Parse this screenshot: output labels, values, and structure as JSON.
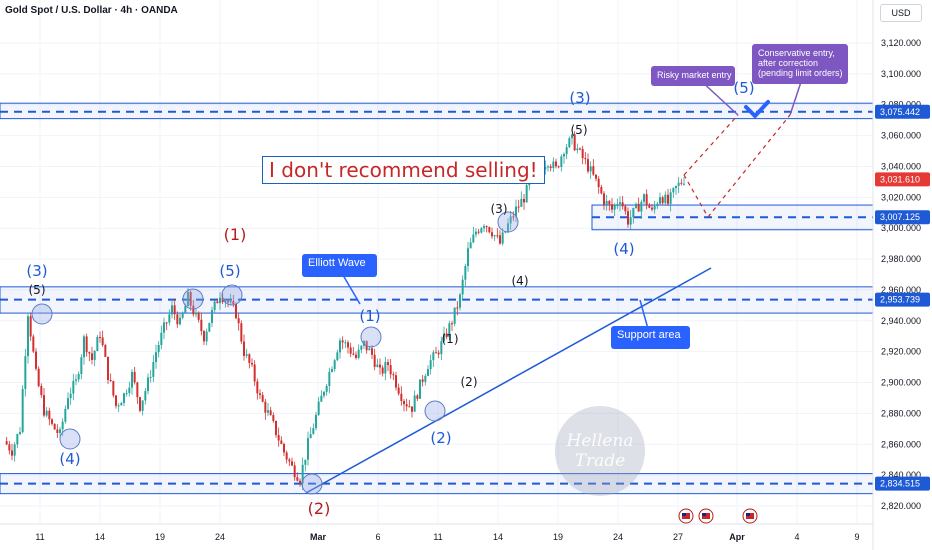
{
  "header": {
    "title": "Gold Spot / U.S. Dollar · 4h · OANDA",
    "currency": "USD"
  },
  "chart_data": {
    "type": "candlestick",
    "y_axis": {
      "range": [
        2815,
        3132
      ],
      "ticks": [
        "3,120.000",
        "3,100.000",
        "3,080.000",
        "3,060.000",
        "3,040.000",
        "3,020.000",
        "3,000.000",
        "2,980.000",
        "2,960.000",
        "2,940.000",
        "2,920.000",
        "2,900.000",
        "2,880.000",
        "2,860.000",
        "2,840.000",
        "2,820.000"
      ]
    },
    "x_axis": {
      "ticks": [
        "11",
        "14",
        "19",
        "24",
        "Mar",
        "6",
        "11",
        "14",
        "19",
        "24",
        "27",
        "Apr",
        "4",
        "9"
      ]
    },
    "price_markers": [
      {
        "value": 3075.442,
        "label": "3,075.442",
        "color": "#1e5ad6"
      },
      {
        "value": 3031.61,
        "label": "3,031.610",
        "color": "#e53935"
      },
      {
        "value": 3007.125,
        "label": "3,007.125",
        "color": "#1e5ad6"
      },
      {
        "value": 2953.739,
        "label": "2,953.739",
        "color": "#1e5ad6"
      },
      {
        "value": 2834.515,
        "label": "2,834.515",
        "color": "#1e5ad6"
      }
    ],
    "price_path": [
      2862,
      2856,
      2870,
      2946,
      2905,
      2882,
      2872,
      2866,
      2892,
      2900,
      2928,
      2915,
      2932,
      2905,
      2885,
      2892,
      2905,
      2885,
      2900,
      2920,
      2935,
      2948,
      2938,
      2955,
      2942,
      2930,
      2945,
      2958,
      2952,
      2945,
      2920,
      2908,
      2890,
      2880,
      2868,
      2855,
      2845,
      2838,
      2860,
      2878,
      2896,
      2912,
      2928,
      2923,
      2916,
      2925,
      2918,
      2906,
      2912,
      2900,
      2888,
      2884,
      2898,
      2912,
      2918,
      2928,
      2940,
      2955,
      2985,
      2998,
      3004,
      2998,
      2990,
      3002,
      3012,
      3020,
      3032,
      3040,
      3044,
      3038,
      3052,
      3057,
      3048,
      3040,
      3030,
      3018,
      3012,
      3020,
      3005,
      3012,
      3020,
      3010,
      3022,
      3016,
      3026,
      3032
    ]
  },
  "annotations": {
    "main_message": "I don't recommend selling!",
    "elliott_wave": "Elliott Wave",
    "support_area": "Support area",
    "risky_entry": "Risky market entry",
    "conservative_entry_1": "Conservative entry,",
    "conservative_entry_2": "after correction",
    "conservative_entry_3": "(pending limit orders)",
    "waves": {
      "w3_left": "(3)",
      "w5_left": "(5)",
      "w4_left": "(4)",
      "w1_red": "(1)",
      "w5_mid": "(5)",
      "w2_red": "(2)",
      "w1_blue": "(1)",
      "sub1": "(1)",
      "sub2": "(2)",
      "w2_blue": "(2)",
      "sub3": "(3)",
      "sub4": "(4)",
      "w3_top": "(3)",
      "sub5": "(5)",
      "w4_right": "(4)",
      "w5_target": "(5)"
    }
  },
  "watermark": {
    "line1": "Hellena",
    "line2": "Trade"
  },
  "colors": {
    "up": "#26a69a",
    "down": "#d32f2f",
    "wave_blue": "#1e5ad6",
    "callout": "#7e57c2",
    "callout_blue": "#2962ff"
  }
}
